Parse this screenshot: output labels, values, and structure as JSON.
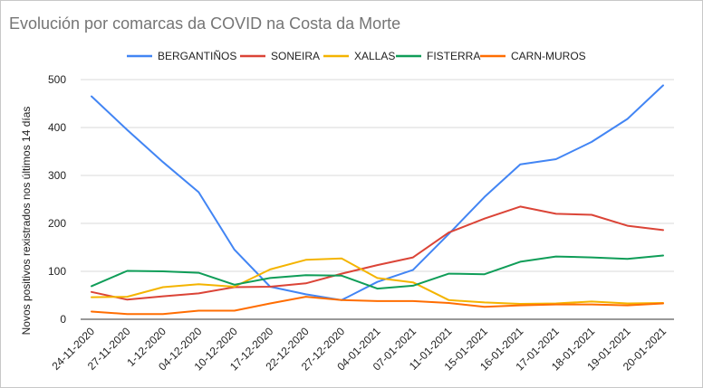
{
  "chart_data": {
    "type": "line",
    "title": "Evolución por comarcas da COVID na Costa da Morte",
    "xlabel": "",
    "ylabel": "Novos positivos rexistrados nos últimos 14 días",
    "ylim": [
      0,
      500
    ],
    "yticks": [
      "0",
      "100",
      "200",
      "300",
      "400",
      "500"
    ],
    "grid": true,
    "legend_position": "top",
    "categories": [
      "24-11-2020",
      "27-11-2020",
      "1-12-2020",
      "04-12-2020",
      "10-12-2020",
      "17-12-2020",
      "22-12-2020",
      "27-12-2020",
      "04-01-2021",
      "07-01-2021",
      "11-01-2021",
      "15-01-2021",
      "16-01-2021",
      "17-01-2021",
      "18-01-2021",
      "19-01-2021",
      "20-01-2021"
    ],
    "series": [
      {
        "name": "BERGANTIÑOS",
        "color": "#4285f4",
        "values": [
          465,
          395,
          328,
          265,
          145,
          68,
          52,
          40,
          78,
          103,
          178,
          255,
          323,
          334,
          370,
          418,
          488
        ]
      },
      {
        "name": "SONEIRA",
        "color": "#db4437",
        "values": [
          57,
          41,
          48,
          54,
          67,
          68,
          75,
          95,
          113,
          129,
          181,
          210,
          235,
          220,
          218,
          195,
          186
        ]
      },
      {
        "name": "XALLAS",
        "color": "#f4b400",
        "values": [
          46,
          47,
          67,
          73,
          68,
          104,
          124,
          127,
          86,
          77,
          40,
          35,
          32,
          33,
          37,
          33,
          34
        ]
      },
      {
        "name": "FISTERRA",
        "color": "#0f9d58",
        "values": [
          69,
          101,
          100,
          97,
          72,
          86,
          92,
          91,
          64,
          70,
          95,
          94,
          120,
          131,
          129,
          126,
          133
        ]
      },
      {
        "name": "CARN-MUROS",
        "color": "#ff6d01",
        "values": [
          16,
          11,
          11,
          18,
          18,
          33,
          47,
          40,
          38,
          38,
          34,
          26,
          29,
          31,
          31,
          29,
          33
        ]
      }
    ]
  }
}
